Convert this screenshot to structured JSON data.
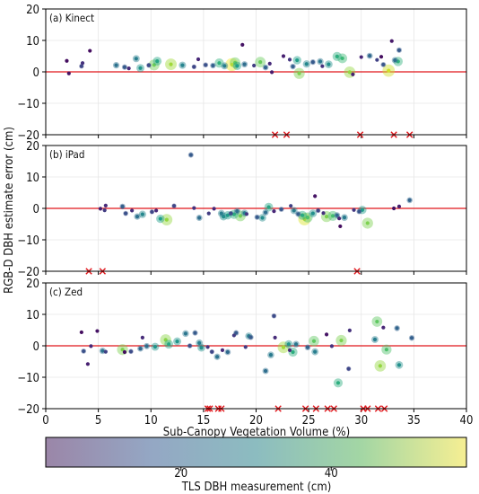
{
  "figure": {
    "ylabel": "RGB-D DBH estimate error (cm)",
    "xlabel": "Sub-Canopy Vegetation Volume (%)",
    "colorbar_label": "TLS DBH measurement (cm)",
    "colorbar_ticks": [
      20,
      40
    ],
    "colorbar_range": [
      2,
      58
    ],
    "colormap": "viridis",
    "reference_line_color": "#e0161b",
    "out_of_range_marker_color": "#e0161b"
  },
  "chart_data": [
    {
      "type": "scatter",
      "panel_label": "(a) Kinect",
      "xlim": [
        0,
        40
      ],
      "ylim": [
        -20,
        20
      ],
      "xticks": [
        0,
        5,
        10,
        15,
        20,
        25,
        30,
        35,
        40
      ],
      "yticks": [
        -20,
        -10,
        0,
        10,
        20
      ],
      "grid": true,
      "reference_line_y": 0,
      "points": [
        {
          "x": 2.0,
          "y": 3.5,
          "d": 4
        },
        {
          "x": 2.2,
          "y": -0.5,
          "d": 5
        },
        {
          "x": 3.4,
          "y": 1.8,
          "d": 14
        },
        {
          "x": 3.5,
          "y": 2.8,
          "d": 10
        },
        {
          "x": 4.2,
          "y": 6.7,
          "d": 4
        },
        {
          "x": 6.7,
          "y": 2.1,
          "d": 23
        },
        {
          "x": 7.5,
          "y": 1.5,
          "d": 18
        },
        {
          "x": 7.9,
          "y": 1.1,
          "d": 9
        },
        {
          "x": 8.6,
          "y": 4.2,
          "d": 26
        },
        {
          "x": 9.0,
          "y": 1.2,
          "d": 31
        },
        {
          "x": 9.8,
          "y": 2.1,
          "d": 15
        },
        {
          "x": 10.3,
          "y": 2.2,
          "d": 46
        },
        {
          "x": 10.6,
          "y": 3.4,
          "d": 35
        },
        {
          "x": 11.9,
          "y": 2.4,
          "d": 50
        },
        {
          "x": 13.0,
          "y": 2.1,
          "d": 27
        },
        {
          "x": 14.5,
          "y": 4.0,
          "d": 8
        },
        {
          "x": 14.1,
          "y": 1.6,
          "d": 14
        },
        {
          "x": 15.2,
          "y": 2.2,
          "d": 16
        },
        {
          "x": 15.9,
          "y": 2.0,
          "d": 19
        },
        {
          "x": 16.5,
          "y": 2.8,
          "d": 38
        },
        {
          "x": 17.0,
          "y": 1.9,
          "d": 26
        },
        {
          "x": 17.7,
          "y": 2.3,
          "d": 57
        },
        {
          "x": 18.0,
          "y": 2.9,
          "d": 45
        },
        {
          "x": 18.2,
          "y": 1.9,
          "d": 33
        },
        {
          "x": 18.7,
          "y": 8.6,
          "d": 5
        },
        {
          "x": 18.9,
          "y": 2.4,
          "d": 22
        },
        {
          "x": 19.8,
          "y": 2.0,
          "d": 12
        },
        {
          "x": 20.4,
          "y": 3.1,
          "d": 45
        },
        {
          "x": 20.9,
          "y": 1.4,
          "d": 20
        },
        {
          "x": 21.3,
          "y": 2.6,
          "d": 9
        },
        {
          "x": 21.5,
          "y": -0.1,
          "d": 6
        },
        {
          "x": 22.6,
          "y": 5.0,
          "d": 7
        },
        {
          "x": 23.2,
          "y": 3.9,
          "d": 11
        },
        {
          "x": 23.5,
          "y": 1.7,
          "d": 19
        },
        {
          "x": 23.9,
          "y": 3.7,
          "d": 33
        },
        {
          "x": 24.1,
          "y": -0.5,
          "d": 47
        },
        {
          "x": 24.8,
          "y": 2.5,
          "d": 28
        },
        {
          "x": 25.4,
          "y": 3.1,
          "d": 18
        },
        {
          "x": 26.1,
          "y": 3.3,
          "d": 24
        },
        {
          "x": 26.3,
          "y": 1.8,
          "d": 10
        },
        {
          "x": 26.9,
          "y": 2.4,
          "d": 30
        },
        {
          "x": 27.7,
          "y": 4.9,
          "d": 37
        },
        {
          "x": 28.2,
          "y": 4.3,
          "d": 40
        },
        {
          "x": 28.9,
          "y": -0.1,
          "d": 49
        },
        {
          "x": 29.2,
          "y": -0.8,
          "d": 7
        },
        {
          "x": 30.0,
          "y": 4.7,
          "d": 8
        },
        {
          "x": 30.8,
          "y": 5.1,
          "d": 21
        },
        {
          "x": 31.5,
          "y": 3.8,
          "d": 13
        },
        {
          "x": 31.9,
          "y": 4.8,
          "d": 4
        },
        {
          "x": 32.1,
          "y": 2.3,
          "d": 17
        },
        {
          "x": 32.6,
          "y": 0.4,
          "d": 54
        },
        {
          "x": 32.9,
          "y": 9.8,
          "d": 6
        },
        {
          "x": 33.2,
          "y": 3.7,
          "d": 22
        },
        {
          "x": 33.6,
          "y": 6.9,
          "d": 18
        },
        {
          "x": 33.5,
          "y": 3.3,
          "d": 38
        }
      ],
      "out_of_range": [
        {
          "x": 21.8
        },
        {
          "x": 22.9
        },
        {
          "x": 29.9
        },
        {
          "x": 33.1
        },
        {
          "x": 34.6
        }
      ]
    },
    {
      "type": "scatter",
      "panel_label": "(b) iPad",
      "xlim": [
        0,
        40
      ],
      "ylim": [
        -20,
        20
      ],
      "xticks": [
        0,
        5,
        10,
        15,
        20,
        25,
        30,
        35,
        40
      ],
      "yticks": [
        -20,
        -10,
        0,
        10,
        20
      ],
      "grid": true,
      "reference_line_y": 0,
      "points": [
        {
          "x": 5.2,
          "y": -0.1,
          "d": 6
        },
        {
          "x": 5.6,
          "y": -0.6,
          "d": 12
        },
        {
          "x": 5.7,
          "y": 0.9,
          "d": 9
        },
        {
          "x": 7.3,
          "y": 0.6,
          "d": 19
        },
        {
          "x": 7.6,
          "y": -1.6,
          "d": 16
        },
        {
          "x": 8.2,
          "y": -0.7,
          "d": 10
        },
        {
          "x": 8.7,
          "y": -2.6,
          "d": 23
        },
        {
          "x": 9.2,
          "y": -1.9,
          "d": 28
        },
        {
          "x": 10.1,
          "y": -1.1,
          "d": 14
        },
        {
          "x": 10.5,
          "y": -0.7,
          "d": 9
        },
        {
          "x": 10.9,
          "y": -3.3,
          "d": 33
        },
        {
          "x": 11.5,
          "y": -3.6,
          "d": 49
        },
        {
          "x": 12.2,
          "y": 0.8,
          "d": 14
        },
        {
          "x": 13.8,
          "y": 17.0,
          "d": 18
        },
        {
          "x": 14.1,
          "y": 0.1,
          "d": 10
        },
        {
          "x": 14.6,
          "y": -3.0,
          "d": 22
        },
        {
          "x": 15.5,
          "y": -1.6,
          "d": 12
        },
        {
          "x": 16.0,
          "y": -0.1,
          "d": 8
        },
        {
          "x": 16.7,
          "y": -1.6,
          "d": 26
        },
        {
          "x": 16.9,
          "y": -2.6,
          "d": 30
        },
        {
          "x": 17.3,
          "y": -2.2,
          "d": 33
        },
        {
          "x": 17.6,
          "y": -1.6,
          "d": 15
        },
        {
          "x": 17.9,
          "y": -1.9,
          "d": 37
        },
        {
          "x": 18.2,
          "y": -0.9,
          "d": 23
        },
        {
          "x": 18.5,
          "y": -2.4,
          "d": 46
        },
        {
          "x": 18.9,
          "y": -1.5,
          "d": 26
        },
        {
          "x": 19.1,
          "y": -1.8,
          "d": 11
        },
        {
          "x": 20.1,
          "y": -2.8,
          "d": 18
        },
        {
          "x": 20.6,
          "y": -3.0,
          "d": 29
        },
        {
          "x": 20.9,
          "y": -1.3,
          "d": 22
        },
        {
          "x": 21.2,
          "y": 0.4,
          "d": 35
        },
        {
          "x": 21.7,
          "y": -0.9,
          "d": 8
        },
        {
          "x": 22.4,
          "y": -0.3,
          "d": 17
        },
        {
          "x": 23.3,
          "y": 0.8,
          "d": 13
        },
        {
          "x": 23.6,
          "y": -0.7,
          "d": 26
        },
        {
          "x": 24.0,
          "y": -1.8,
          "d": 19
        },
        {
          "x": 24.4,
          "y": -2.2,
          "d": 36
        },
        {
          "x": 24.6,
          "y": -3.4,
          "d": 55
        },
        {
          "x": 24.9,
          "y": -2.9,
          "d": 42
        },
        {
          "x": 25.4,
          "y": -1.6,
          "d": 30
        },
        {
          "x": 25.6,
          "y": 3.9,
          "d": 5
        },
        {
          "x": 25.9,
          "y": -0.7,
          "d": 14
        },
        {
          "x": 26.4,
          "y": -1.5,
          "d": 10
        },
        {
          "x": 26.7,
          "y": -2.6,
          "d": 47
        },
        {
          "x": 27.3,
          "y": -2.4,
          "d": 41
        },
        {
          "x": 27.7,
          "y": -2.2,
          "d": 21
        },
        {
          "x": 27.9,
          "y": -3.2,
          "d": 8
        },
        {
          "x": 28.0,
          "y": -5.7,
          "d": 4
        },
        {
          "x": 28.4,
          "y": -2.9,
          "d": 25
        },
        {
          "x": 29.3,
          "y": -0.5,
          "d": 11
        },
        {
          "x": 29.8,
          "y": -1.0,
          "d": 17
        },
        {
          "x": 30.1,
          "y": -0.5,
          "d": 33
        },
        {
          "x": 30.6,
          "y": -4.7,
          "d": 47
        },
        {
          "x": 33.1,
          "y": 0.0,
          "d": 4
        },
        {
          "x": 33.6,
          "y": 0.6,
          "d": 7
        },
        {
          "x": 34.6,
          "y": 2.6,
          "d": 20
        }
      ],
      "out_of_range": [
        {
          "x": 4.1
        },
        {
          "x": 5.4
        },
        {
          "x": 29.6
        }
      ]
    },
    {
      "type": "scatter",
      "panel_label": "(c) Zed",
      "xlim": [
        0,
        40
      ],
      "ylim": [
        -20,
        20
      ],
      "xticks": [
        0,
        5,
        10,
        15,
        20,
        25,
        30,
        35,
        40
      ],
      "yticks": [
        -20,
        -10,
        0,
        10,
        20
      ],
      "grid": true,
      "reference_line_y": 0,
      "points": [
        {
          "x": 3.4,
          "y": 4.3,
          "d": 4
        },
        {
          "x": 3.6,
          "y": -1.7,
          "d": 16
        },
        {
          "x": 4.0,
          "y": -5.8,
          "d": 7
        },
        {
          "x": 4.3,
          "y": -0.1,
          "d": 8
        },
        {
          "x": 4.9,
          "y": 4.7,
          "d": 5
        },
        {
          "x": 5.4,
          "y": -1.6,
          "d": 23
        },
        {
          "x": 5.7,
          "y": -1.9,
          "d": 13
        },
        {
          "x": 7.3,
          "y": -1.2,
          "d": 47
        },
        {
          "x": 7.5,
          "y": -2.0,
          "d": 4
        },
        {
          "x": 8.1,
          "y": -1.8,
          "d": 15
        },
        {
          "x": 9.0,
          "y": -0.9,
          "d": 21
        },
        {
          "x": 9.2,
          "y": 2.6,
          "d": 9
        },
        {
          "x": 9.6,
          "y": -0.1,
          "d": 22
        },
        {
          "x": 10.4,
          "y": -0.3,
          "d": 31
        },
        {
          "x": 11.4,
          "y": 1.9,
          "d": 48
        },
        {
          "x": 11.7,
          "y": 0.5,
          "d": 35
        },
        {
          "x": 12.5,
          "y": 1.4,
          "d": 31
        },
        {
          "x": 13.3,
          "y": 3.9,
          "d": 24
        },
        {
          "x": 13.7,
          "y": 0.0,
          "d": 16
        },
        {
          "x": 14.2,
          "y": 4.1,
          "d": 18
        },
        {
          "x": 14.6,
          "y": 0.9,
          "d": 26
        },
        {
          "x": 14.8,
          "y": -0.6,
          "d": 30
        },
        {
          "x": 15.4,
          "y": -0.4,
          "d": 11
        },
        {
          "x": 15.8,
          "y": -1.9,
          "d": 14
        },
        {
          "x": 16.3,
          "y": -3.5,
          "d": 23
        },
        {
          "x": 16.8,
          "y": -1.4,
          "d": 9
        },
        {
          "x": 17.3,
          "y": -2.0,
          "d": 21
        },
        {
          "x": 17.9,
          "y": 3.3,
          "d": 12
        },
        {
          "x": 18.1,
          "y": 4.1,
          "d": 18
        },
        {
          "x": 19.0,
          "y": -0.4,
          "d": 12
        },
        {
          "x": 19.3,
          "y": 3.1,
          "d": 26
        },
        {
          "x": 19.5,
          "y": 2.7,
          "d": 18
        },
        {
          "x": 20.9,
          "y": -8.0,
          "d": 22
        },
        {
          "x": 21.4,
          "y": -2.9,
          "d": 25
        },
        {
          "x": 21.7,
          "y": 9.5,
          "d": 15
        },
        {
          "x": 21.8,
          "y": 2.6,
          "d": 9
        },
        {
          "x": 22.6,
          "y": -0.5,
          "d": 50
        },
        {
          "x": 23.1,
          "y": 0.5,
          "d": 31
        },
        {
          "x": 23.2,
          "y": -1.4,
          "d": 9
        },
        {
          "x": 23.5,
          "y": -2.0,
          "d": 37
        },
        {
          "x": 23.8,
          "y": 0.5,
          "d": 24
        },
        {
          "x": 24.9,
          "y": -0.5,
          "d": 20
        },
        {
          "x": 25.6,
          "y": -1.9,
          "d": 26
        },
        {
          "x": 25.5,
          "y": 1.5,
          "d": 44
        },
        {
          "x": 26.7,
          "y": 3.6,
          "d": 5
        },
        {
          "x": 27.2,
          "y": -0.1,
          "d": 10
        },
        {
          "x": 27.8,
          "y": -11.8,
          "d": 37
        },
        {
          "x": 28.1,
          "y": 1.7,
          "d": 47
        },
        {
          "x": 28.8,
          "y": -7.3,
          "d": 14
        },
        {
          "x": 28.9,
          "y": 4.9,
          "d": 10
        },
        {
          "x": 31.3,
          "y": 2.0,
          "d": 26
        },
        {
          "x": 31.5,
          "y": 7.7,
          "d": 44
        },
        {
          "x": 31.8,
          "y": -6.4,
          "d": 49
        },
        {
          "x": 32.1,
          "y": 5.8,
          "d": 8
        },
        {
          "x": 32.4,
          "y": -1.2,
          "d": 42
        },
        {
          "x": 33.4,
          "y": 5.6,
          "d": 20
        },
        {
          "x": 33.6,
          "y": -6.1,
          "d": 30
        },
        {
          "x": 34.8,
          "y": 2.5,
          "d": 19
        }
      ],
      "out_of_range": [
        {
          "x": 15.4
        },
        {
          "x": 15.6
        },
        {
          "x": 16.4
        },
        {
          "x": 16.7
        },
        {
          "x": 22.1
        },
        {
          "x": 24.7
        },
        {
          "x": 25.7
        },
        {
          "x": 26.8
        },
        {
          "x": 27.4
        },
        {
          "x": 30.2
        },
        {
          "x": 30.6
        },
        {
          "x": 31.6
        },
        {
          "x": 32.2
        }
      ]
    }
  ]
}
